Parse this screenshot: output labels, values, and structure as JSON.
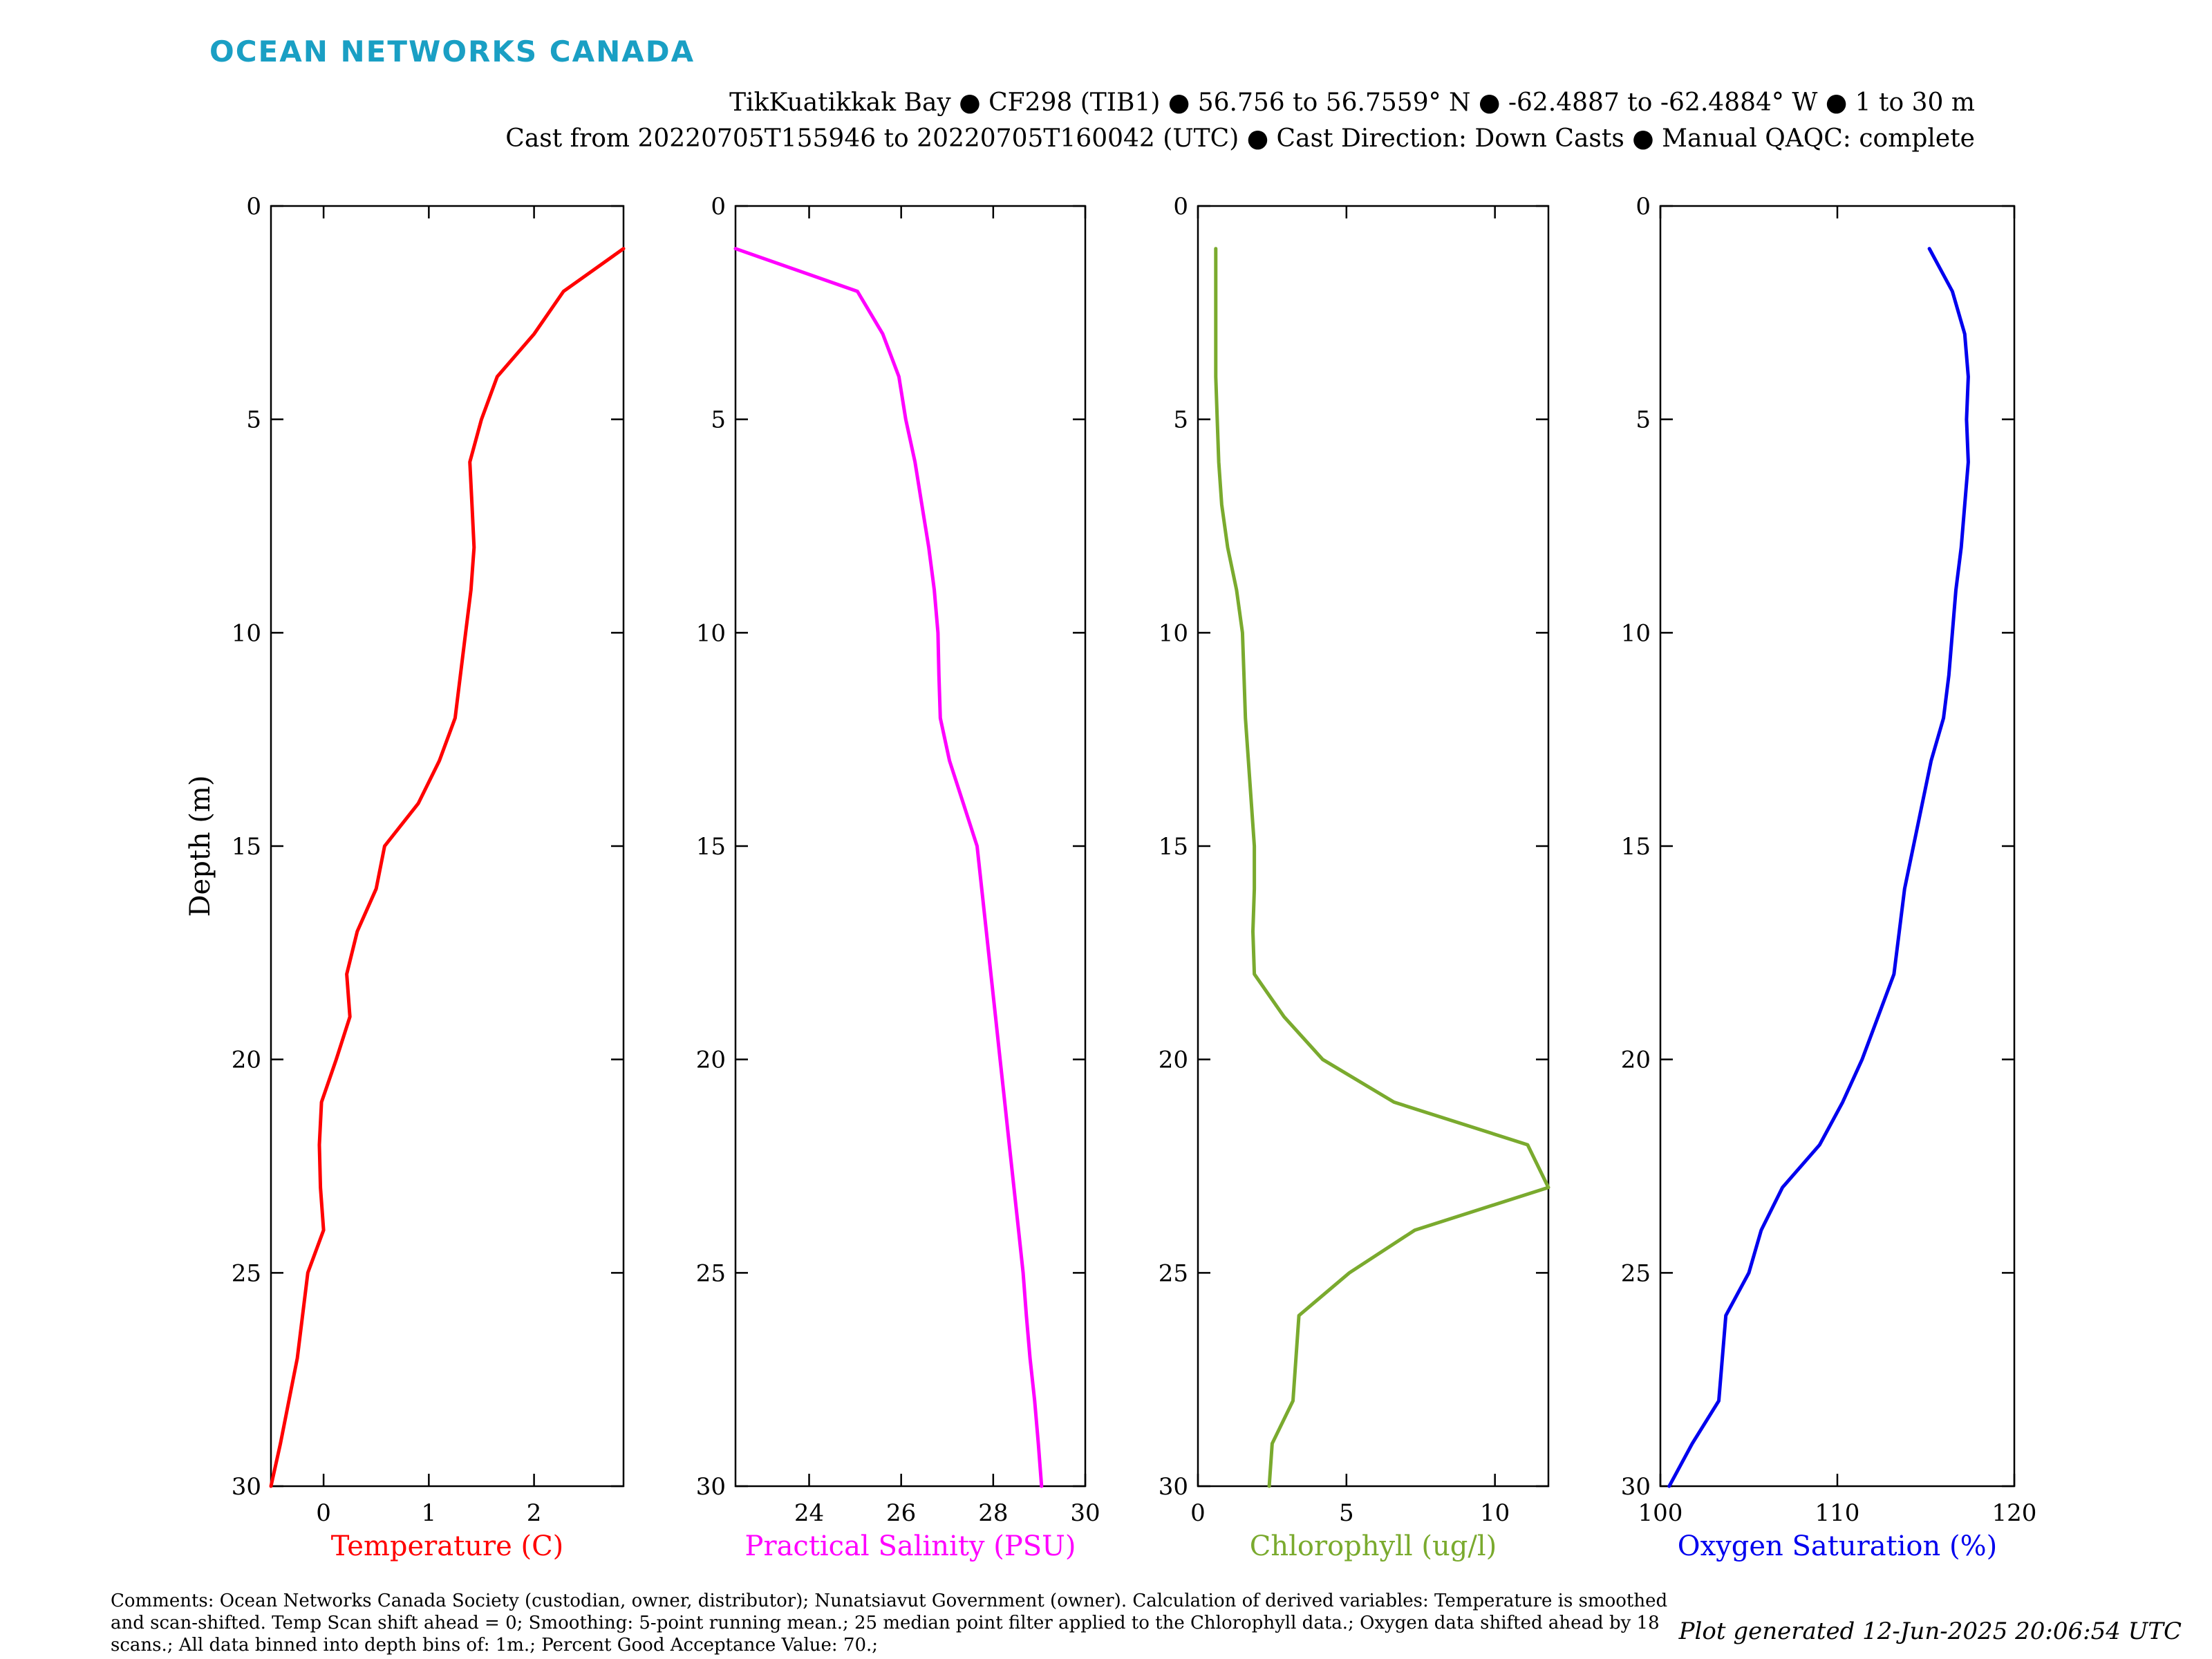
{
  "logo": "OCEAN NETWORKS CANADA",
  "header": {
    "line1": "TikKuatikkak Bay ● CF298 (TIB1) ● 56.756 to 56.7559° N ● -62.4887 to -62.4884° W ● 1 to 30 m",
    "line2": "Cast from 20220705T155946 to 20220705T160042 (UTC) ● Cast Direction: Down Casts ● Manual QAQC: complete"
  },
  "chart_data": [
    {
      "type": "line",
      "xlabel": "Temperature (C)",
      "ylabel": "Depth (m)",
      "color": "#ff0000",
      "xlim": [
        -0.5,
        2.85
      ],
      "ylim": [
        30,
        0
      ],
      "xticks": [
        0,
        1,
        2
      ],
      "yticks": [
        0,
        5,
        10,
        15,
        20,
        25,
        30
      ],
      "depth": [
        1,
        2,
        3,
        4,
        5,
        6,
        7,
        8,
        9,
        10,
        11,
        12,
        13,
        14,
        15,
        16,
        17,
        18,
        19,
        20,
        21,
        22,
        23,
        24,
        25,
        26,
        27,
        28,
        29,
        30
      ],
      "values": [
        2.85,
        2.28,
        2.0,
        1.65,
        1.5,
        1.39,
        1.41,
        1.43,
        1.4,
        1.35,
        1.3,
        1.25,
        1.1,
        0.9,
        0.58,
        0.5,
        0.32,
        0.22,
        0.25,
        0.12,
        -0.02,
        -0.04,
        -0.03,
        0.0,
        -0.15,
        -0.2,
        -0.25,
        -0.33,
        -0.41,
        -0.5
      ],
      "grid": false
    },
    {
      "type": "line",
      "xlabel": "Practical Salinity (PSU)",
      "ylabel": "",
      "color": "#ff00ff",
      "xlim": [
        22.4,
        30
      ],
      "ylim": [
        30,
        0
      ],
      "xticks": [
        24,
        26,
        28,
        30
      ],
      "yticks": [
        0,
        5,
        10,
        15,
        20,
        25,
        30
      ],
      "depth": [
        1,
        2,
        3,
        4,
        5,
        6,
        7,
        8,
        9,
        10,
        11,
        12,
        13,
        14,
        15,
        16,
        17,
        18,
        19,
        20,
        21,
        22,
        23,
        24,
        25,
        26,
        27,
        28,
        29,
        30
      ],
      "values": [
        22.4,
        25.05,
        25.6,
        25.95,
        26.1,
        26.3,
        26.45,
        26.6,
        26.72,
        26.8,
        26.82,
        26.85,
        27.05,
        27.35,
        27.65,
        27.75,
        27.85,
        27.95,
        28.05,
        28.15,
        28.25,
        28.35,
        28.45,
        28.55,
        28.65,
        28.72,
        28.8,
        28.9,
        28.98,
        29.05
      ],
      "grid": false
    },
    {
      "type": "line",
      "xlabel": "Chlorophyll (ug/l)",
      "ylabel": "",
      "color": "#7aaa2e",
      "xlim": [
        0,
        11.8
      ],
      "ylim": [
        30,
        0
      ],
      "xticks": [
        0,
        5,
        10
      ],
      "yticks": [
        0,
        5,
        10,
        15,
        20,
        25,
        30
      ],
      "depth": [
        1,
        2,
        3,
        4,
        5,
        6,
        7,
        8,
        9,
        10,
        11,
        12,
        13,
        14,
        15,
        16,
        17,
        18,
        19,
        20,
        21,
        22,
        23,
        24,
        25,
        26,
        27,
        28,
        29,
        30
      ],
      "values": [
        0.6,
        0.6,
        0.6,
        0.6,
        0.65,
        0.7,
        0.8,
        1.0,
        1.3,
        1.5,
        1.55,
        1.6,
        1.7,
        1.8,
        1.9,
        1.9,
        1.85,
        1.9,
        2.9,
        4.2,
        6.6,
        11.1,
        11.8,
        7.3,
        5.1,
        3.4,
        3.3,
        3.2,
        2.5,
        2.4
      ],
      "grid": false
    },
    {
      "type": "line",
      "xlabel": "Oxygen Saturation (%)",
      "ylabel": "",
      "color": "#0000ee",
      "xlim": [
        100,
        120
      ],
      "ylim": [
        30,
        0
      ],
      "xticks": [
        100,
        110,
        120
      ],
      "yticks": [
        0,
        5,
        10,
        15,
        20,
        25,
        30
      ],
      "depth": [
        1,
        2,
        3,
        4,
        5,
        6,
        7,
        8,
        9,
        10,
        11,
        12,
        13,
        14,
        15,
        16,
        17,
        18,
        19,
        20,
        21,
        22,
        23,
        24,
        25,
        26,
        27,
        28,
        29,
        30
      ],
      "values": [
        115.2,
        116.5,
        117.2,
        117.4,
        117.3,
        117.4,
        117.2,
        117.0,
        116.7,
        116.5,
        116.3,
        116.0,
        115.3,
        114.8,
        114.3,
        113.8,
        113.5,
        113.2,
        112.3,
        111.4,
        110.3,
        109.0,
        106.9,
        105.7,
        105.0,
        103.7,
        103.5,
        103.3,
        101.8,
        100.5
      ],
      "grid": false
    }
  ],
  "footer": {
    "comments": "Comments: Ocean Networks Canada Society (custodian, owner, distributor); Nunatsiavut Government (owner). Calculation of derived variables: Temperature is smoothed and scan-shifted. Temp Scan shift ahead = 0; Smoothing: 5-point running mean.; 25 median point filter applied to the Chlorophyll data.; Oxygen data shifted ahead by 18 scans.; All data binned into depth bins of: 1m.; Percent Good Acceptance Value: 70.;",
    "generated": "Plot generated 12-Jun-2025 20:06:54 UTC"
  }
}
